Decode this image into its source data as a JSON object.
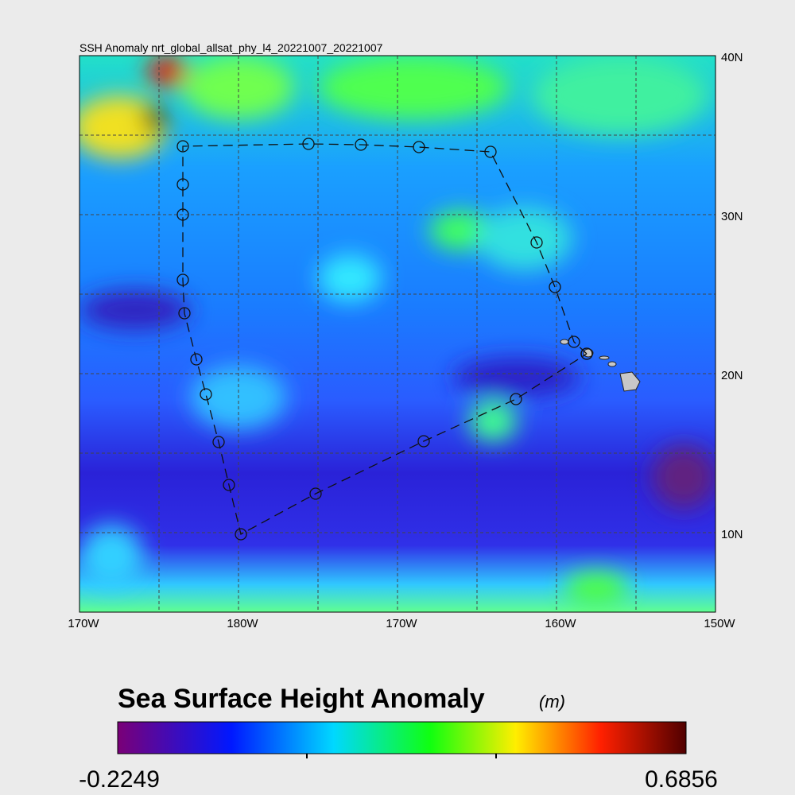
{
  "title": "SSH Anomaly nrt_global_allsat_phy_l4_20221007_20221007",
  "lon_labels": [
    "170W",
    "180W",
    "170W",
    "160W",
    "150W"
  ],
  "lat_labels": [
    "40N",
    "30N",
    "20N",
    "10N"
  ],
  "colorbar": {
    "title": "Sea Surface Height Anomaly",
    "units": "(m)",
    "min_label": "-0.2249",
    "max_label": "0.6856"
  }
}
